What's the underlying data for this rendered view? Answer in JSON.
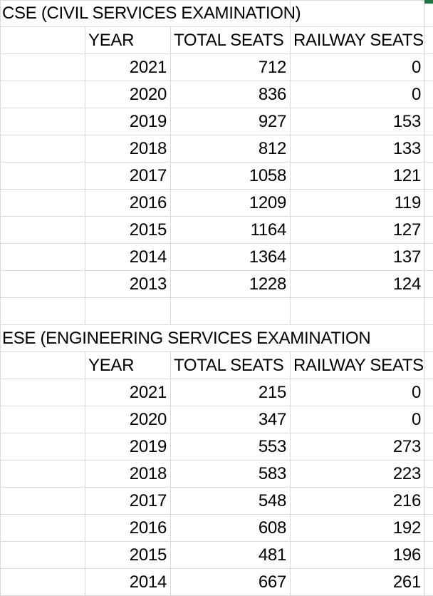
{
  "colors": {
    "gridline": "#d9d9d9",
    "selection_green": "#217346",
    "background": "#ffffff",
    "text": "#000000"
  },
  "tables": [
    {
      "title": "CSE (CIVIL SERVICES EXAMINATION)",
      "columns": [
        "YEAR",
        "TOTAL SEATS",
        "RAILWAY SEATS"
      ],
      "rows": [
        {
          "year": "2021",
          "total_seats": "712",
          "railway_seats": "0"
        },
        {
          "year": "2020",
          "total_seats": "836",
          "railway_seats": "0"
        },
        {
          "year": "2019",
          "total_seats": "927",
          "railway_seats": "153"
        },
        {
          "year": "2018",
          "total_seats": "812",
          "railway_seats": "133"
        },
        {
          "year": "2017",
          "total_seats": "1058",
          "railway_seats": "121"
        },
        {
          "year": "2016",
          "total_seats": "1209",
          "railway_seats": "119"
        },
        {
          "year": "2015",
          "total_seats": "1164",
          "railway_seats": "127"
        },
        {
          "year": "2014",
          "total_seats": "1364",
          "railway_seats": "137"
        },
        {
          "year": "2013",
          "total_seats": "1228",
          "railway_seats": "124"
        }
      ]
    },
    {
      "title": "ESE (ENGINEERING SERVICES EXAMINATION",
      "columns": [
        "YEAR",
        "TOTAL SEATS",
        "RAILWAY SEATS"
      ],
      "rows": [
        {
          "year": "2021",
          "total_seats": "215",
          "railway_seats": "0"
        },
        {
          "year": "2020",
          "total_seats": "347",
          "railway_seats": "0"
        },
        {
          "year": "2019",
          "total_seats": "553",
          "railway_seats": "273"
        },
        {
          "year": "2018",
          "total_seats": "583",
          "railway_seats": "223"
        },
        {
          "year": "2017",
          "total_seats": "548",
          "railway_seats": "216"
        },
        {
          "year": "2016",
          "total_seats": "608",
          "railway_seats": "192"
        },
        {
          "year": "2015",
          "total_seats": "481",
          "railway_seats": "196"
        },
        {
          "year": "2014",
          "total_seats": "667",
          "railway_seats": "261"
        }
      ]
    }
  ]
}
